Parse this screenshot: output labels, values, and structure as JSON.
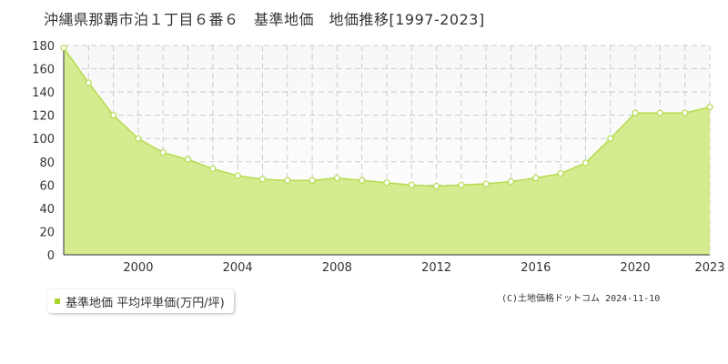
{
  "chart_data": {
    "type": "area",
    "title": "沖縄県那覇市泊１丁目６番６　基準地価　地価推移[1997-2023]",
    "x": [
      1997,
      1998,
      1999,
      2000,
      2001,
      2002,
      2003,
      2004,
      2005,
      2006,
      2007,
      2008,
      2009,
      2010,
      2011,
      2012,
      2013,
      2014,
      2015,
      2016,
      2017,
      2018,
      2019,
      2020,
      2021,
      2022,
      2023
    ],
    "series": [
      {
        "name": "基準地価 平均坪単価(万円/坪)",
        "values": [
          178,
          148,
          120,
          100,
          88,
          82,
          74,
          68,
          65,
          64,
          64,
          66,
          64,
          62,
          60,
          59,
          60,
          61,
          63,
          66,
          70,
          79,
          100,
          122,
          122,
          122,
          127
        ]
      }
    ],
    "xticks": [
      2000,
      2004,
      2008,
      2012,
      2016,
      2020,
      2023
    ],
    "yticks": [
      0,
      20,
      40,
      60,
      80,
      100,
      120,
      140,
      160,
      180
    ],
    "xlim": [
      1997,
      2023
    ],
    "ylim": [
      0,
      180
    ],
    "grid": true,
    "legend_position": "bottom-left",
    "colors": {
      "fill": "#d4eb8f",
      "line": "#b5dc4f",
      "marker_stroke": "#b5dc4f",
      "marker_fill": "#ffffff",
      "legend_marker": "#a8d52a",
      "grid": "#cccccc",
      "plot_bg_top": "#f7f7f7"
    }
  },
  "legend_label": "基準地価 平均坪単価(万円/坪)",
  "copyright": "(C)土地価格ドットコム 2024-11-10"
}
